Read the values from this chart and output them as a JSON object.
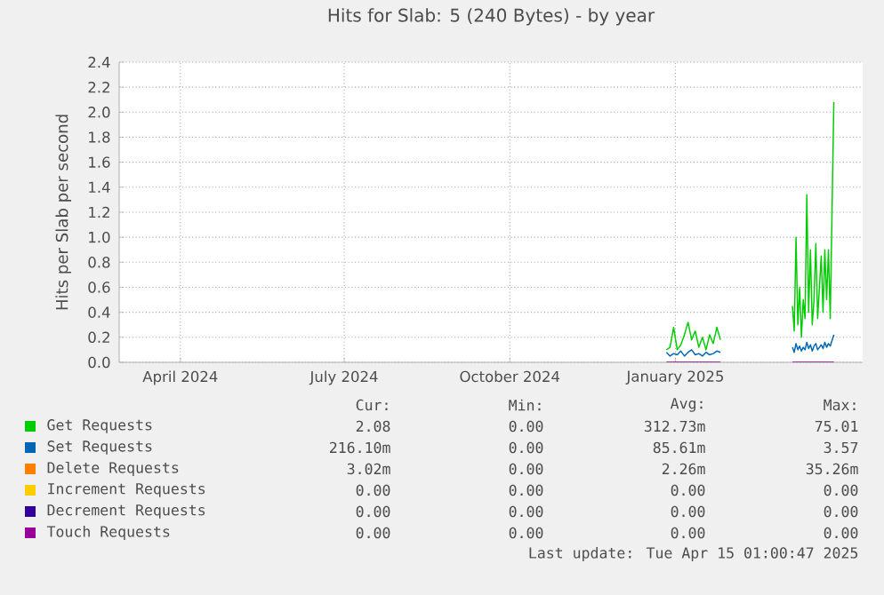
{
  "chart_data": {
    "type": "line",
    "title": "Hits for Slab: 5 (240 Bytes) - by year",
    "ylabel": "Hits per Slab per second",
    "x": [
      "2025-01-11",
      "2025-01-13",
      "2025-01-15",
      "2025-01-17",
      "2025-01-19",
      "2025-01-21",
      "2025-01-23",
      "2025-01-25",
      "2025-01-27",
      "2025-01-29",
      "2025-01-31",
      "2025-02-02",
      "2025-02-04",
      "2025-02-06",
      "2025-02-08",
      "2025-02-10",
      "2025-02-20",
      "2025-03-22",
      "2025-03-23",
      "2025-03-24",
      "2025-03-25",
      "2025-03-26",
      "2025-03-27",
      "2025-03-28",
      "2025-03-29",
      "2025-03-30",
      "2025-03-31",
      "2025-04-01",
      "2025-04-02",
      "2025-04-03",
      "2025-04-04",
      "2025-04-05",
      "2025-04-06",
      "2025-04-07",
      "2025-04-08",
      "2025-04-09",
      "2025-04-10",
      "2025-04-11",
      "2025-04-12",
      "2025-04-14"
    ],
    "series": [
      {
        "name": "Get Requests",
        "color": "#00cc00",
        "values": [
          0.1,
          0.12,
          0.28,
          0.1,
          0.14,
          0.22,
          0.32,
          0.18,
          0.25,
          0.12,
          0.2,
          0.1,
          0.22,
          0.15,
          0.28,
          0.18,
          null,
          0.45,
          0.25,
          1.0,
          0.3,
          0.6,
          0.2,
          0.5,
          0.35,
          1.34,
          0.4,
          0.9,
          0.3,
          0.5,
          0.95,
          0.35,
          0.6,
          0.85,
          0.4,
          0.9,
          0.5,
          0.9,
          0.35,
          2.08
        ]
      },
      {
        "name": "Set Requests",
        "color": "#0066b3",
        "values": [
          0.08,
          0.05,
          0.07,
          0.06,
          0.09,
          0.05,
          0.08,
          0.1,
          0.06,
          0.07,
          0.05,
          0.08,
          0.06,
          0.07,
          0.09,
          0.08,
          null,
          0.12,
          0.08,
          0.15,
          0.1,
          0.13,
          0.09,
          0.12,
          0.1,
          0.16,
          0.11,
          0.14,
          0.09,
          0.13,
          0.15,
          0.1,
          0.12,
          0.14,
          0.11,
          0.16,
          0.12,
          0.15,
          0.13,
          0.22
        ]
      },
      {
        "name": "Delete Requests",
        "color": "#ff8000",
        "values": [
          null,
          null,
          null,
          null,
          null,
          null,
          null,
          null,
          null,
          null,
          null,
          null,
          null,
          null,
          null,
          null,
          null,
          null,
          null,
          null,
          null,
          null,
          null,
          null,
          null,
          null,
          null,
          null,
          null,
          null,
          null,
          null,
          null,
          null,
          null,
          null,
          null,
          null,
          null,
          null
        ]
      },
      {
        "name": "Increment Requests",
        "color": "#ffcc00",
        "values": [
          null,
          null,
          null,
          null,
          null,
          null,
          null,
          null,
          null,
          null,
          null,
          null,
          null,
          null,
          null,
          null,
          null,
          null,
          null,
          null,
          null,
          null,
          null,
          null,
          null,
          null,
          null,
          null,
          null,
          null,
          null,
          null,
          null,
          null,
          null,
          null,
          null,
          null,
          null,
          null
        ]
      },
      {
        "name": "Decrement Requests",
        "color": "#330099",
        "values": [
          null,
          null,
          null,
          null,
          null,
          null,
          null,
          null,
          null,
          null,
          null,
          null,
          null,
          null,
          null,
          null,
          null,
          null,
          null,
          null,
          null,
          null,
          null,
          null,
          null,
          null,
          null,
          null,
          null,
          null,
          null,
          null,
          null,
          null,
          null,
          null,
          null,
          null,
          null,
          null
        ]
      },
      {
        "name": "Touch Requests",
        "color": "#990099",
        "values": [
          0,
          0,
          0,
          0,
          0,
          0,
          0,
          0,
          0,
          0,
          0,
          0,
          0,
          0,
          0,
          0,
          null,
          0,
          0,
          0,
          0,
          0,
          0,
          0,
          0,
          0,
          0,
          0,
          0,
          0,
          0,
          0,
          0,
          0,
          0,
          0,
          0,
          0,
          0,
          0
        ]
      }
    ],
    "xlim": [
      "2024-03-13",
      "2025-04-30"
    ],
    "xticks": [
      {
        "value": "2024-04-16",
        "label": "April 2024"
      },
      {
        "value": "2024-07-16",
        "label": "July 2024"
      },
      {
        "value": "2024-10-16",
        "label": "October 2024"
      },
      {
        "value": "2025-01-16",
        "label": "January 2025"
      }
    ],
    "ylim": [
      0,
      2.4
    ],
    "yticks": [
      {
        "value": 0,
        "label": "0.0"
      },
      {
        "value": 0.2,
        "label": "0.2"
      },
      {
        "value": 0.4,
        "label": "0.4"
      },
      {
        "value": 0.6,
        "label": "0.6"
      },
      {
        "value": 0.8,
        "label": "0.8"
      },
      {
        "value": 1.0,
        "label": "1.0"
      },
      {
        "value": 1.2,
        "label": "1.2"
      },
      {
        "value": 1.4,
        "label": "1.4"
      },
      {
        "value": 1.6,
        "label": "1.6"
      },
      {
        "value": 1.8,
        "label": "1.8"
      },
      {
        "value": 2.0,
        "label": "2.0"
      },
      {
        "value": 2.2,
        "label": "2.2"
      },
      {
        "value": 2.4,
        "label": "2.4"
      }
    ],
    "grid": true,
    "legend": "bottom",
    "line_style": "solid",
    "annotations": [
      "Cur:",
      "Min:",
      "Avg:",
      "Max:",
      "2.08",
      "0.00",
      "312.73m",
      "75.01",
      "216.10m",
      "0.00",
      "85.61m",
      "3.57",
      "3.02m",
      "0.00",
      "2.26m",
      "35.26m",
      "0.00",
      "0.00",
      "0.00",
      "0.00",
      "0.00",
      "0.00",
      "0.00",
      "0.00",
      "0.00",
      "0.00",
      "0.00",
      "0.00",
      "Last update: Tue Apr 15 01:00:47 2025"
    ]
  }
}
